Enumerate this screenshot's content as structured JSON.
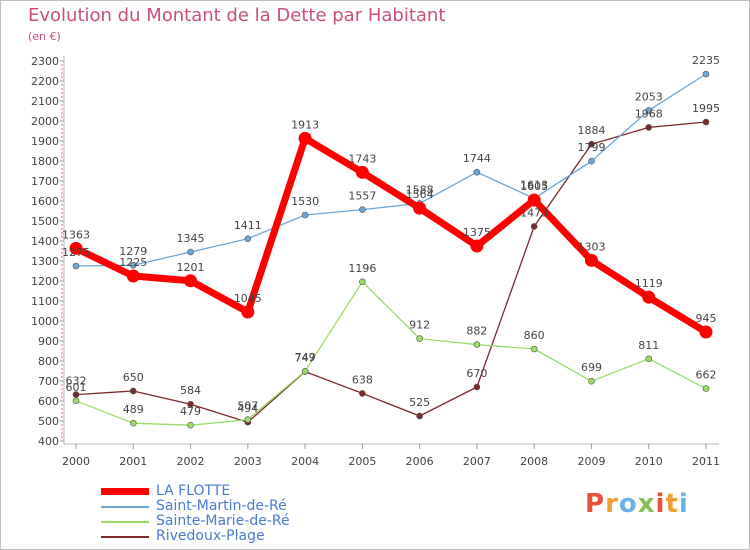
{
  "chart_data": {
    "type": "line",
    "title": "Evolution du Montant de la Dette par Habitant",
    "subtitle": "(en €)",
    "xlabel": "",
    "ylabel": "",
    "x": [
      "2000",
      "2001",
      "2002",
      "2003",
      "2004",
      "2005",
      "2006",
      "2007",
      "2008",
      "2009",
      "2010",
      "2011"
    ],
    "ylim": [
      400,
      2300
    ],
    "yticks": [
      "400",
      "500",
      "600",
      "700",
      "800",
      "900",
      "1000",
      "1100",
      "1200",
      "1300",
      "1400",
      "1500",
      "1600",
      "1700",
      "1800",
      "1900",
      "2000",
      "2100",
      "2200",
      "2300"
    ],
    "grid": false,
    "legend_position": "bottom-left",
    "series": [
      {
        "name": "LA FLOTTE",
        "color": "#ff0000",
        "labels": true,
        "values": [
          1363,
          1225,
          1201,
          1045,
          1913,
          1743,
          1564,
          1375,
          1605,
          1303,
          1119,
          945
        ]
      },
      {
        "name": "Saint-Martin-de-Ré",
        "color": "#6aa6d6",
        "labels": true,
        "values": [
          1275,
          1279,
          1345,
          1411,
          1530,
          1557,
          1588,
          1744,
          1613,
          1799,
          2053,
          2235
        ]
      },
      {
        "name": "Sainte-Marie-de-Ré",
        "color": "#99dd66",
        "labels": true,
        "values": [
          601,
          489,
          479,
          507,
          749,
          1196,
          912,
          882,
          860,
          699,
          811,
          662
        ]
      },
      {
        "name": "Rivedoux-Plage",
        "color": "#7a2a2a",
        "labels": true,
        "values": [
          632,
          650,
          584,
          494,
          747,
          638,
          525,
          670,
          1473,
          1884,
          1968,
          1995
        ]
      }
    ]
  },
  "brand": {
    "letters": [
      {
        "ch": "P",
        "color": "#e8503a"
      },
      {
        "ch": "r",
        "color": "#f0a030"
      },
      {
        "ch": "o",
        "color": "#6cb0e8"
      },
      {
        "ch": "x",
        "color": "#88c050"
      },
      {
        "ch": "i",
        "color": "#e8503a"
      },
      {
        "ch": "t",
        "color": "#f0a030"
      },
      {
        "ch": "i",
        "color": "#6cb0e8"
      }
    ]
  }
}
